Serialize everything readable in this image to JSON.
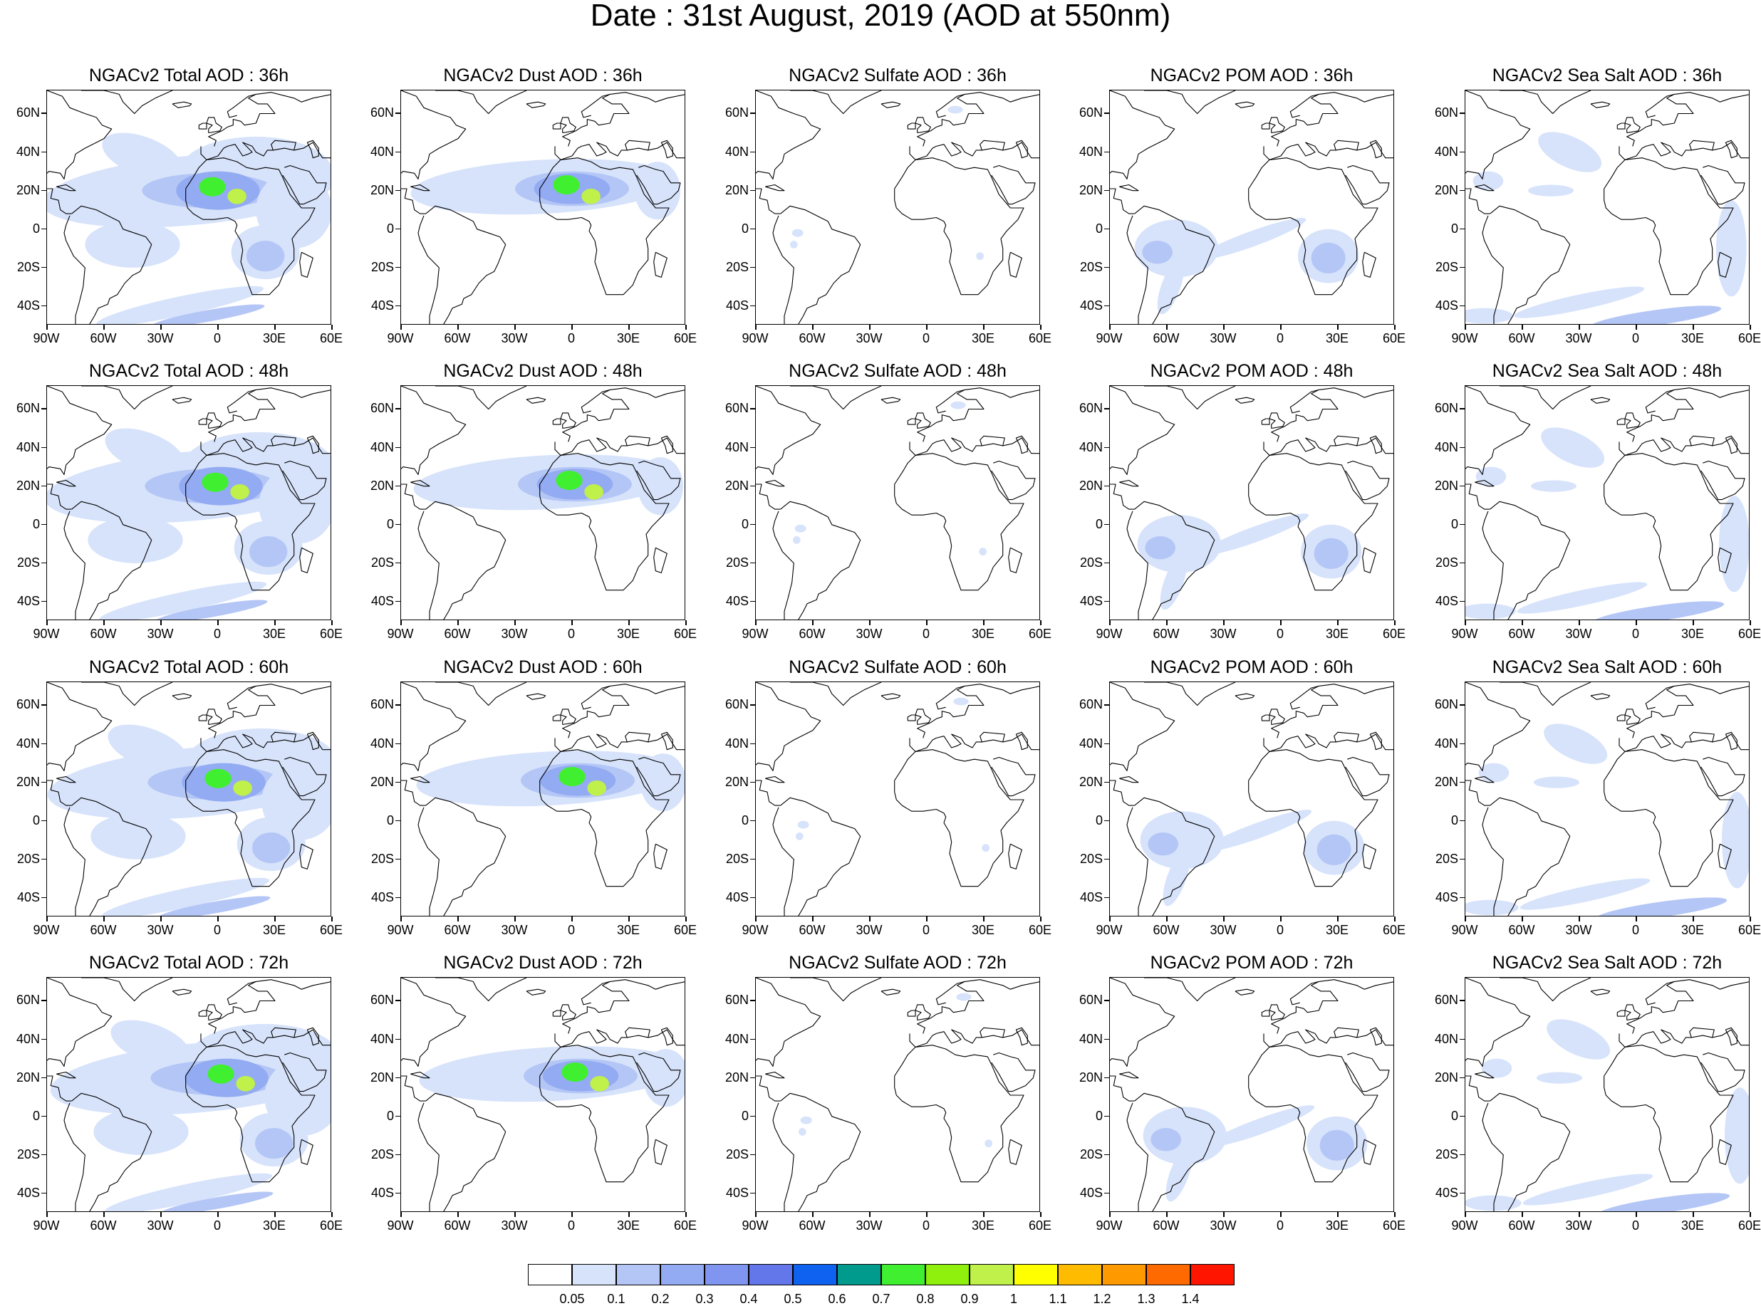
{
  "title": "Date : 31st August, 2019 (AOD at 550nm)",
  "lat_labels": [
    "60N",
    "40N",
    "20N",
    "0",
    "20S",
    "40S"
  ],
  "lat_values": [
    60,
    40,
    20,
    0,
    -20,
    -40
  ],
  "lon_labels": [
    "90W",
    "60W",
    "30W",
    "0",
    "30E",
    "60E"
  ],
  "lon_values": [
    -90,
    -60,
    -30,
    0,
    30,
    60
  ],
  "map_extent": {
    "lon": [
      -90,
      60
    ],
    "lat": [
      -50,
      72
    ]
  },
  "panel_titles": [
    [
      "NGACv2 Total AOD : 36h",
      "NGACv2 Dust AOD : 36h",
      "NGACv2 Sulfate AOD : 36h",
      "NGACv2 POM AOD : 36h",
      "NGACv2 Sea Salt AOD : 36h"
    ],
    [
      "NGACv2 Total AOD : 48h",
      "NGACv2 Dust AOD : 48h",
      "NGACv2 Sulfate AOD : 48h",
      "NGACv2 POM AOD : 48h",
      "NGACv2 Sea Salt AOD : 48h"
    ],
    [
      "NGACv2 Total AOD : 60h",
      "NGACv2 Dust AOD : 60h",
      "NGACv2 Sulfate AOD : 60h",
      "NGACv2 POM AOD : 60h",
      "NGACv2 Sea Salt AOD : 60h"
    ],
    [
      "NGACv2 Total AOD : 72h",
      "NGACv2 Dust AOD : 72h",
      "NGACv2 Sulfate AOD : 72h",
      "NGACv2 POM AOD : 72h",
      "NGACv2 Sea Salt  AOD : 72h"
    ]
  ],
  "colorbar": {
    "labels": [
      "0.05",
      "0.1",
      "0.2",
      "0.3",
      "0.4",
      "0.5",
      "0.6",
      "0.7",
      "0.8",
      "0.9",
      "1",
      "1.1",
      "1.2",
      "1.3",
      "1.4"
    ],
    "colors": [
      "#ffffff",
      "#d7e3fb",
      "#b4c6f6",
      "#93abf2",
      "#7f95ef",
      "#6376ea",
      "#0f62f0",
      "#009b8c",
      "#40f030",
      "#8ef00c",
      "#c0f04a",
      "#ffff00",
      "#ffbb00",
      "#ff9900",
      "#ff6a00",
      "#ff1500"
    ]
  },
  "colors": {
    "light": "#d7e3fb",
    "mid": "#b4c6f6",
    "strong": "#93abf2",
    "heavy": "#7f95ef",
    "peak": "#40f030",
    "peak2": "#c0f04a",
    "coast": "#000000"
  }
}
